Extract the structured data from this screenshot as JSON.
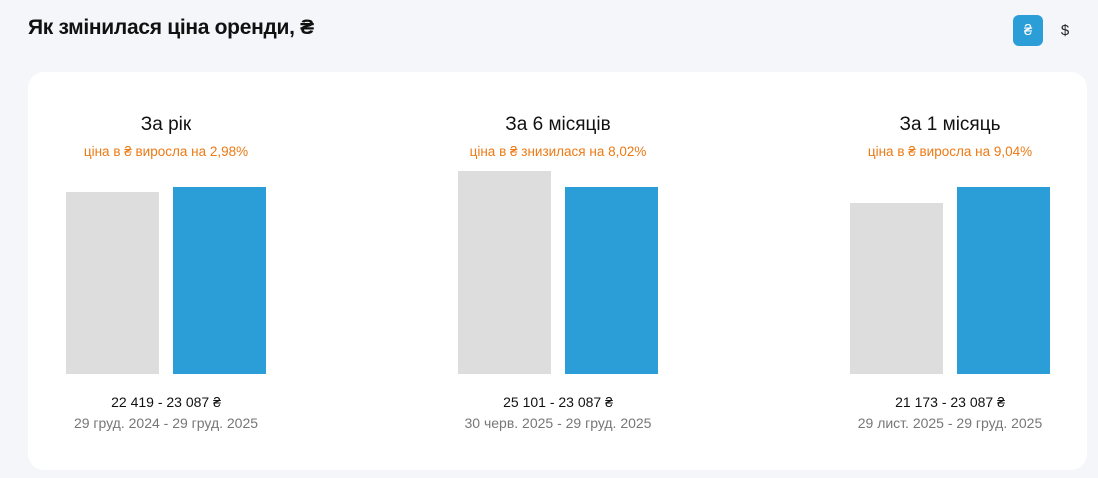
{
  "header": {
    "title": "Як змінилася ціна оренди, ₴",
    "currency_buttons": [
      {
        "label": "₴",
        "active": true
      },
      {
        "label": "$",
        "active": false
      }
    ]
  },
  "colors": {
    "previous": "#dddddd",
    "current": "#2b9ed8",
    "change_text": "#ec7a14"
  },
  "chart_data": [
    {
      "type": "bar",
      "title": "За рік",
      "subtitle": "ціна в ₴ виросла на 2,98%",
      "categories": [
        "29 груд. 2024",
        "29 груд. 2025"
      ],
      "values": [
        22419,
        23087
      ],
      "range_label": "22 419 - 23 087 ₴",
      "dates_label": "29 груд. 2024 - 29 груд. 2025"
    },
    {
      "type": "bar",
      "title": "За 6 місяців",
      "subtitle": "ціна в ₴ знизилася на 8,02%",
      "categories": [
        "30 черв. 2025",
        "29 груд. 2025"
      ],
      "values": [
        25101,
        23087
      ],
      "range_label": "25 101 - 23 087 ₴",
      "dates_label": "30 черв. 2025 - 29 груд. 2025"
    },
    {
      "type": "bar",
      "title": "За 1 місяць",
      "subtitle": "ціна в ₴ виросла на 9,04%",
      "categories": [
        "29 лист. 2025",
        "29 груд. 2025"
      ],
      "values": [
        21173,
        23087
      ],
      "range_label": "21 173 - 23 087 ₴",
      "dates_label": "29 лист. 2025 - 29 груд. 2025"
    }
  ]
}
